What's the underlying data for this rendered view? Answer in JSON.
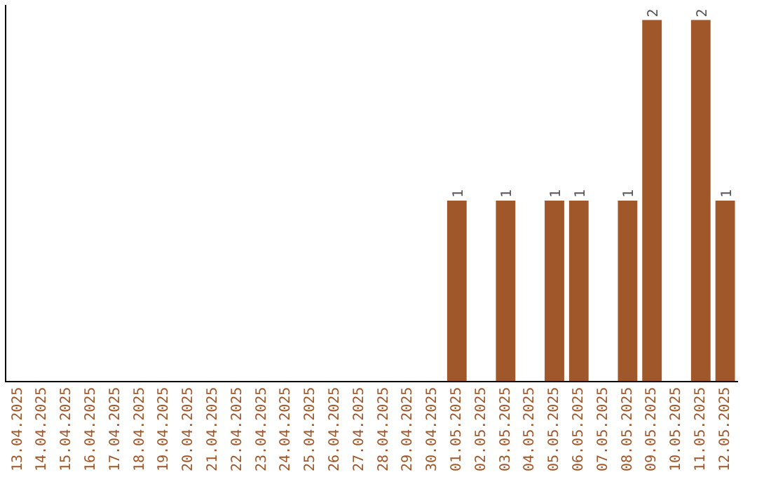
{
  "chart_data": {
    "type": "bar",
    "categories": [
      "13.04.2025",
      "14.04.2025",
      "15.04.2025",
      "16.04.2025",
      "17.04.2025",
      "18.04.2025",
      "19.04.2025",
      "20.04.2025",
      "21.04.2025",
      "22.04.2025",
      "23.04.2025",
      "24.04.2025",
      "25.04.2025",
      "26.04.2025",
      "27.04.2025",
      "28.04.2025",
      "29.04.2025",
      "30.04.2025",
      "01.05.2025",
      "02.05.2025",
      "03.05.2025",
      "04.05.2025",
      "05.05.2025",
      "06.05.2025",
      "07.05.2025",
      "08.05.2025",
      "09.05.2025",
      "10.05.2025",
      "11.05.2025",
      "12.05.2025"
    ],
    "values": [
      null,
      null,
      null,
      null,
      null,
      null,
      null,
      null,
      null,
      null,
      null,
      null,
      null,
      null,
      null,
      null,
      null,
      null,
      1,
      null,
      1,
      null,
      1,
      1,
      null,
      1,
      2,
      null,
      2,
      1
    ],
    "data_labels": true,
    "color": "#a0572a",
    "tick_labels": "x",
    "grid": false,
    "legend": false
  }
}
